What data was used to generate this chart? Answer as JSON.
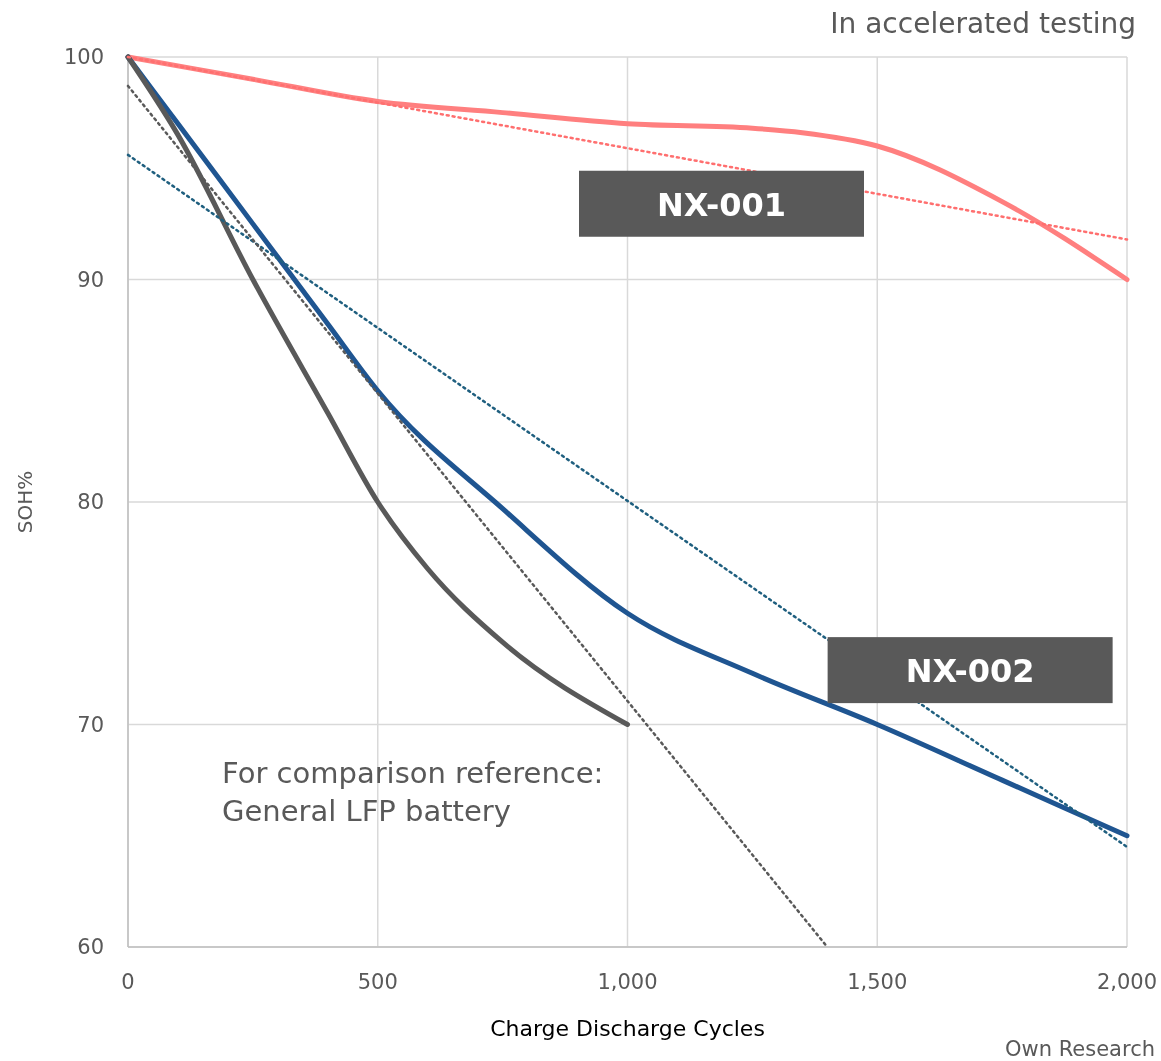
{
  "chart_data": {
    "type": "line",
    "xlabel": "Charge Discharge Cycles",
    "ylabel": "SOH%",
    "xlim": [
      0,
      2000
    ],
    "xticks": [
      0,
      500,
      {
        "value": 1000,
        "label": "1,000"
      },
      {
        "value": 1500,
        "label": "1,500"
      },
      {
        "value": 2000,
        "label": "2,000"
      }
    ],
    "ylim": [
      60,
      100
    ],
    "yticks": [
      60,
      70,
      80,
      90,
      100
    ],
    "grid": true,
    "annotations": [
      "In accelerated testing",
      "For comparison reference:\nGeneral LFP battery",
      "Own Research"
    ],
    "series": [
      {
        "name": "NX-001",
        "color": "#ff7f7f",
        "line_style": "solid",
        "x": [
          0,
          250,
          500,
          750,
          1000,
          1250,
          1350,
          1500,
          1750,
          2000
        ],
        "values": [
          100,
          99,
          98,
          97.5,
          97,
          96.8,
          96.6,
          96,
          93.5,
          90
        ]
      },
      {
        "name": "NX-002",
        "color": "#1f5591",
        "line_style": "solid",
        "x": [
          0,
          100,
          250,
          400,
          500,
          750,
          1000,
          1250,
          1500,
          1750,
          2000
        ],
        "values": [
          100,
          97,
          92.5,
          88,
          85,
          79.7,
          75,
          72.3,
          70,
          67.5,
          65
        ]
      },
      {
        "color": "#595959",
        "line_style": "solid",
        "x": [
          0,
          100,
          250,
          400,
          500,
          600,
          750,
          1000
        ],
        "values": [
          100,
          96.5,
          90,
          84,
          80,
          77,
          73.7,
          70
        ]
      },
      {
        "color": "#ff6f6f",
        "line_style": "dotted",
        "x": [
          0,
          2000
        ],
        "values": [
          100,
          91.8
        ]
      },
      {
        "color": "#1f5f7f",
        "line_style": "dotted",
        "x": [
          0,
          2000
        ],
        "values": [
          95.6,
          64.5
        ]
      },
      {
        "color": "#595959",
        "line_style": "dotted",
        "x": [
          0,
          1400
        ],
        "values": [
          98.7,
          60
        ]
      }
    ]
  }
}
